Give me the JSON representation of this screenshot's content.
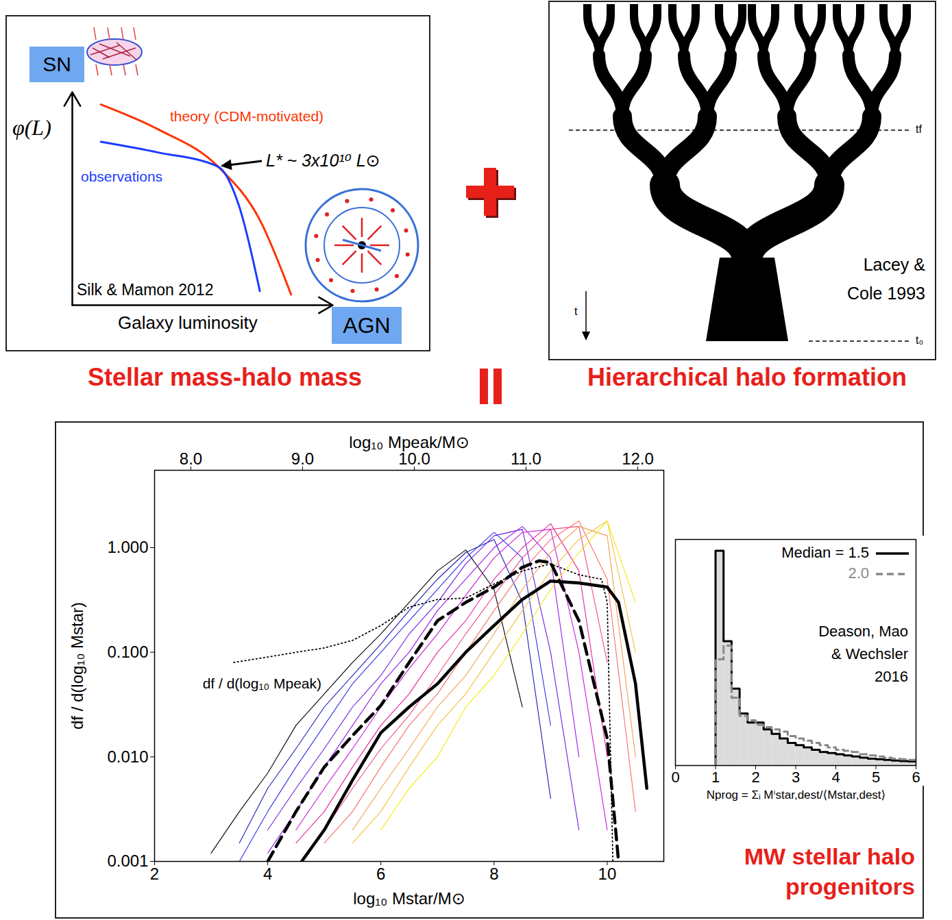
{
  "titles": {
    "left": "Stellar mass-halo mass",
    "right": "Hierarchical halo formation",
    "bottom": [
      "MW stellar halo",
      "progenitors"
    ]
  },
  "tree": {
    "labels": {
      "formation_time": "tf",
      "present_time": "t₀",
      "time_axis": "t"
    },
    "credit": [
      "Lacey &",
      "Cole 1993"
    ]
  },
  "chart_data": [
    {
      "type": "line",
      "xlabel": "Galaxy luminosity",
      "ylabel": "φ(L)",
      "tick_labels": false,
      "xlim": [
        0,
        10
      ],
      "ylim": [
        0,
        12
      ],
      "series": [
        {
          "name": "theory (CDM-motivated)",
          "color": "#ff3300",
          "x": [
            1.1,
            3.3,
            5.6,
            7.2,
            8.4
          ],
          "values": [
            11.3,
            9.9,
            7.8,
            4.8,
            0.6
          ]
        },
        {
          "name": "observations",
          "color": "#1a3cff",
          "x": [
            1.1,
            3.3,
            5.6,
            6.4,
            7.2
          ],
          "values": [
            9.2,
            8.6,
            7.8,
            5.6,
            0.8
          ]
        }
      ],
      "annotations": [
        {
          "text": "L* ~ 3x10¹⁰ L⊙",
          "x": 5.6,
          "y": 7.8
        },
        {
          "text": "Silk & Mamon 2012"
        },
        {
          "text": "SN"
        },
        {
          "text": "AGN"
        }
      ]
    },
    {
      "type": "line",
      "log": "y",
      "xlabel": "log₁₀ Mstar/M⊙",
      "ylabel": "df / d(log₁₀ Mstar)",
      "x2label": "log₁₀ Mpeak/M⊙",
      "xlim": [
        2,
        11
      ],
      "xticks": [
        2,
        4,
        6,
        8,
        10
      ],
      "ylim": [
        0.001,
        5.5
      ],
      "yticks": [
        0.001,
        {
          "value": 0.01,
          "label": "0.010"
        },
        {
          "value": 0.1,
          "label": "0.100"
        },
        {
          "value": 1,
          "label": "1.000"
        }
      ],
      "x2lim": [
        7.675,
        12.233
      ],
      "x2ticks": [
        {
          "value": 8,
          "label": "8.0"
        },
        {
          "value": 9,
          "label": "9.0"
        },
        {
          "value": 10,
          "label": "10.0"
        },
        {
          "value": 11,
          "label": "11.0"
        },
        {
          "value": 12,
          "label": "12.0"
        }
      ],
      "x": [
        3,
        3.5,
        4,
        4.5,
        5,
        5.5,
        6,
        6.5,
        7,
        7.5,
        8,
        8.5,
        9,
        9.5,
        10,
        10.5,
        11
      ],
      "series": [
        {
          "color": "#000000",
          "line_style": "solid",
          "values": [
            0.0012,
            0.003,
            0.007,
            0.02,
            0.04,
            0.08,
            0.15,
            0.3,
            0.6,
            0.95,
            0.4,
            0.03,
            null,
            null,
            null,
            null,
            null
          ]
        },
        {
          "color": "#1c1cb4",
          "line_style": "solid",
          "values": [
            null,
            0.0015,
            0.005,
            0.012,
            0.03,
            0.06,
            0.12,
            0.25,
            0.5,
            0.9,
            1.2,
            0.3,
            0.004,
            null,
            null,
            null,
            null
          ]
        },
        {
          "color": "#3030e8",
          "line_style": "solid",
          "values": [
            null,
            0.001,
            0.003,
            0.008,
            0.02,
            0.05,
            0.1,
            0.2,
            0.4,
            0.8,
            1.4,
            0.8,
            0.02,
            null,
            null,
            null,
            null
          ]
        },
        {
          "color": "#6a1fe0",
          "line_style": "solid",
          "values": [
            null,
            null,
            0.002,
            0.005,
            0.012,
            0.03,
            0.06,
            0.15,
            0.3,
            0.7,
            1.3,
            1.5,
            0.1,
            0.002,
            null,
            null,
            null
          ]
        },
        {
          "color": "#9a1ae8",
          "line_style": "solid",
          "values": [
            null,
            null,
            0.0012,
            0.003,
            0.008,
            0.02,
            0.05,
            0.1,
            0.25,
            0.5,
            1.0,
            1.6,
            0.8,
            0.01,
            null,
            null,
            null
          ]
        },
        {
          "color": "#c81ad8",
          "line_style": "solid",
          "values": [
            null,
            null,
            null,
            0.002,
            0.005,
            0.012,
            0.03,
            0.07,
            0.15,
            0.35,
            0.8,
            1.4,
            1.5,
            0.1,
            0.002,
            null,
            null
          ]
        },
        {
          "color": "#e8249c",
          "line_style": "solid",
          "values": [
            null,
            null,
            null,
            0.0015,
            0.003,
            0.008,
            0.02,
            0.04,
            0.1,
            0.2,
            0.5,
            1.0,
            1.7,
            0.6,
            0.01,
            null,
            null
          ]
        },
        {
          "color": "#f04a84",
          "line_style": "solid",
          "values": [
            null,
            null,
            null,
            null,
            0.002,
            0.005,
            0.012,
            0.025,
            0.06,
            0.15,
            0.35,
            0.8,
            1.5,
            1.6,
            0.08,
            null,
            null
          ]
        },
        {
          "color": "#f4706c",
          "line_style": "solid",
          "values": [
            null,
            null,
            null,
            null,
            0.0015,
            0.003,
            0.008,
            0.02,
            0.04,
            0.1,
            0.25,
            0.6,
            1.2,
            1.8,
            0.5,
            0.003,
            null
          ]
        },
        {
          "color": "#f49c50",
          "line_style": "solid",
          "values": [
            null,
            null,
            null,
            null,
            null,
            0.002,
            0.005,
            0.012,
            0.03,
            0.06,
            0.15,
            0.4,
            0.9,
            1.6,
            1.3,
            0.01,
            null
          ]
        },
        {
          "color": "#f4c03c",
          "line_style": "solid",
          "values": [
            null,
            null,
            null,
            null,
            null,
            0.0015,
            0.003,
            0.008,
            0.02,
            0.04,
            0.1,
            0.25,
            0.6,
            1.2,
            1.8,
            0.1,
            null
          ]
        },
        {
          "color": "#f0ec00",
          "line_style": "solid",
          "values": [
            null,
            null,
            null,
            null,
            null,
            null,
            0.002,
            0.005,
            0.01,
            0.03,
            0.06,
            0.15,
            0.4,
            0.9,
            1.8,
            0.3,
            null
          ]
        },
        {
          "color": "#000000",
          "line_style": "dotted",
          "x": [
            3.4,
            4,
            4.5,
            5,
            5.5,
            6,
            6.5,
            7,
            7.5,
            8,
            8.5,
            9,
            9.5,
            9.9,
            10,
            10.1
          ],
          "values": [
            0.08,
            0.09,
            0.1,
            0.11,
            0.13,
            0.18,
            0.27,
            0.32,
            0.33,
            0.45,
            0.6,
            0.7,
            0.55,
            0.5,
            0.3,
            0.001
          ]
        },
        {
          "color": "#000000",
          "line_style": "dashed",
          "x": [
            4,
            4.5,
            5,
            5.5,
            6,
            6.5,
            7,
            7.5,
            8,
            8.5,
            8.8,
            9,
            9.5,
            10,
            10.2
          ],
          "values": [
            0.001,
            0.003,
            0.008,
            0.016,
            0.031,
            0.08,
            0.2,
            0.3,
            0.42,
            0.65,
            0.75,
            0.72,
            0.2,
            0.015,
            0.001
          ]
        },
        {
          "color": "#000000",
          "line_style": "thick",
          "x": [
            4.6,
            5,
            5.5,
            6,
            6.5,
            7,
            7.5,
            8,
            8.5,
            9,
            9.5,
            10,
            10.2,
            10.5,
            10.7
          ],
          "values": [
            0.001,
            0.002,
            0.006,
            0.017,
            0.03,
            0.05,
            0.1,
            0.18,
            0.32,
            0.48,
            0.46,
            0.42,
            0.3,
            0.05,
            0.005
          ]
        }
      ],
      "annotations": [
        {
          "text": "df / d(log₁₀ Mpeak)",
          "x": 3.9,
          "y": 0.05
        }
      ]
    },
    {
      "type": "histogram",
      "xlabel": "Nprog = Σᵢ Mⁱstar,dest/⟨Mstar,dest⟩",
      "xlim": [
        0,
        6
      ],
      "xticks": [
        0,
        1,
        2,
        3,
        4,
        5,
        6
      ],
      "ylim": [
        0,
        1
      ],
      "tick_labels": "x",
      "legend": "top-right",
      "bins": [
        1.0,
        1.2,
        1.4,
        1.6,
        1.8,
        2.0,
        2.2,
        2.4,
        2.6,
        2.8,
        3.0,
        3.2,
        3.4,
        3.6,
        3.8,
        4.0,
        4.2,
        4.4,
        4.6,
        4.8,
        5.0,
        5.2,
        5.4,
        5.6,
        5.8,
        6.0
      ],
      "series": [
        {
          "name": "Median = 1.5",
          "color": "#000000",
          "line_style": "solid",
          "values": [
            0.95,
            0.55,
            0.34,
            0.23,
            0.19,
            0.19,
            0.16,
            0.14,
            0.12,
            0.1,
            0.09,
            0.08,
            0.07,
            0.06,
            0.055,
            0.05,
            0.045,
            0.04,
            0.035,
            0.03,
            0.028,
            0.025,
            0.022,
            0.02,
            0.018
          ]
        },
        {
          "name": "2.0",
          "color": "#888888",
          "line_style": "dashed",
          "values": [
            0.47,
            0.53,
            0.3,
            0.22,
            0.2,
            0.18,
            0.17,
            0.16,
            0.15,
            0.13,
            0.12,
            0.11,
            0.1,
            0.09,
            0.08,
            0.07,
            0.065,
            0.06,
            0.05,
            0.045,
            0.04,
            0.035,
            0.03,
            0.028,
            0.025
          ]
        }
      ],
      "annotations": [
        {
          "text": [
            "Deason, Mao",
            "& Wechsler",
            "2016"
          ]
        }
      ]
    }
  ]
}
